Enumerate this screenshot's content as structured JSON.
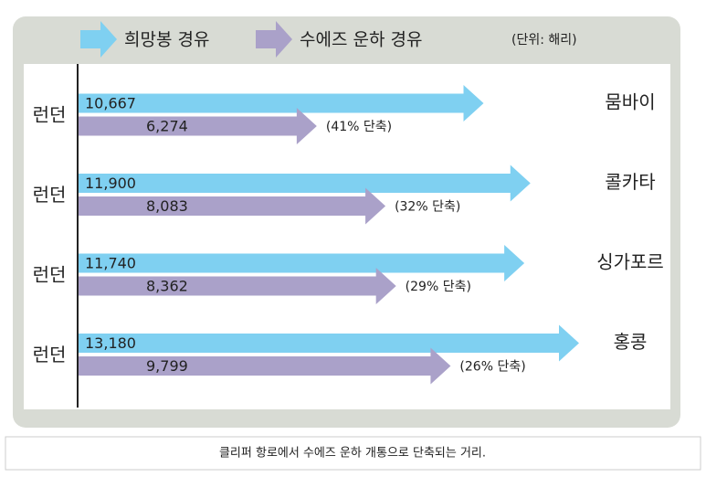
{
  "chart_data": {
    "type": "arrow-bar",
    "unit": "(단위: 해리)",
    "origins": [
      "런던",
      "런던",
      "런던",
      "런던"
    ],
    "categories": [
      "뭄바이",
      "콜카타",
      "싱가포르",
      "홍콩"
    ],
    "series": [
      {
        "name": "희망봉 경유",
        "color": "#7fd0f1",
        "values": [
          10667,
          11900,
          11740,
          13180
        ],
        "value_labels": [
          "10,667",
          "11,900",
          "11,740",
          "13,180"
        ]
      },
      {
        "name": "수에즈 운하 경유",
        "color": "#aaa1c9",
        "values": [
          6274,
          8083,
          8362,
          9799
        ],
        "value_labels": [
          "6,274",
          "8,083",
          "8,362",
          "9,799"
        ]
      }
    ],
    "annotations": [
      "(41% 단축)",
      "(32% 단축)",
      "(29% 단축)",
      "(26% 단축)"
    ],
    "caption": "클리퍼 항로에서 수에즈 운하 개통으로 단축되는 거리."
  }
}
